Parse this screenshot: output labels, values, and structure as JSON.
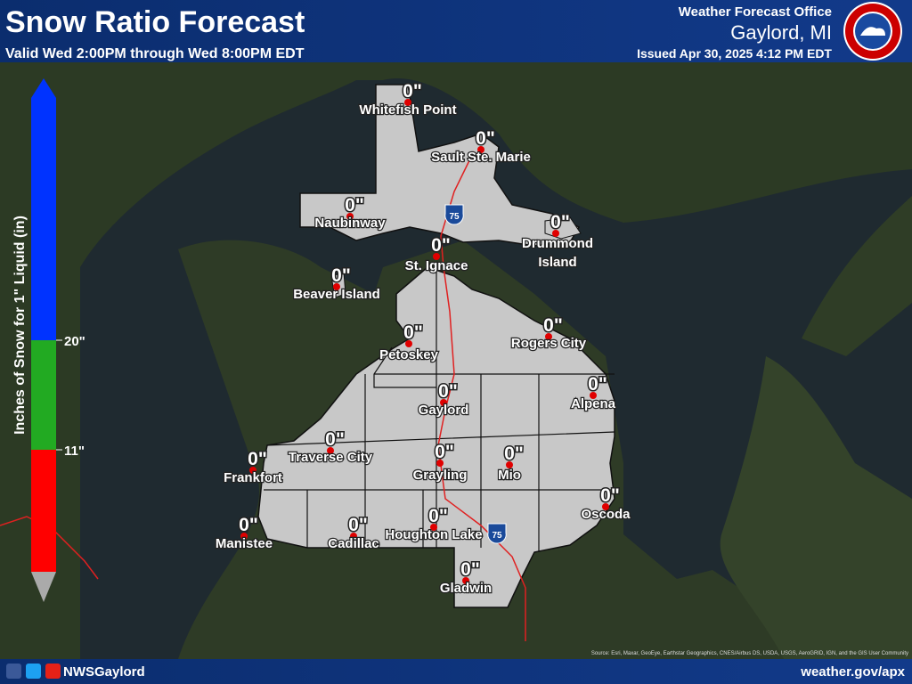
{
  "header": {
    "title": "Snow Ratio Forecast",
    "valid": "Valid Wed 2:00PM through Wed 8:00PM EDT",
    "office": "Weather Forecast Office",
    "location": "Gaylord, MI",
    "issued": "Issued Apr 30, 2025 4:12 PM EDT"
  },
  "legend": {
    "title": "Inches of Snow for 1\" Liquid (in)",
    "ticks": [
      "20\"",
      "11\""
    ]
  },
  "map": {
    "interstate": "75"
  },
  "cities": [
    {
      "name": "Whitefish Point",
      "label": "0\""
    },
    {
      "name": "Sault Ste. Marie",
      "label": "0\""
    },
    {
      "name": "Naubinway",
      "label": "0\""
    },
    {
      "name": "Drummond Island",
      "label": "0\""
    },
    {
      "name": "St. Ignace",
      "label": "0\""
    },
    {
      "name": "Beaver Island",
      "label": "0\""
    },
    {
      "name": "Petoskey",
      "label": "0\""
    },
    {
      "name": "Rogers City",
      "label": "0\""
    },
    {
      "name": "Gaylord",
      "label": "0\""
    },
    {
      "name": "Alpena",
      "label": "0\""
    },
    {
      "name": "Traverse City",
      "label": "0\""
    },
    {
      "name": "Frankfort",
      "label": "0\""
    },
    {
      "name": "Grayling",
      "label": "0\""
    },
    {
      "name": "Mio",
      "label": "0\""
    },
    {
      "name": "Oscoda",
      "label": "0\""
    },
    {
      "name": "Manistee",
      "label": "0\""
    },
    {
      "name": "Cadillac",
      "label": "0\""
    },
    {
      "name": "Houghton Lake",
      "label": "0\""
    },
    {
      "name": "Gladwin",
      "label": "0\""
    }
  ],
  "footer": {
    "handle": "NWSGaylord",
    "website": "weather.gov/apx",
    "source": "Source: Esri, Maxar, GeoEye, Earthstar Geographics, CNES/Airbus DS, USDA, USGS, AeroGRID, IGN, and the GIS User Community"
  }
}
